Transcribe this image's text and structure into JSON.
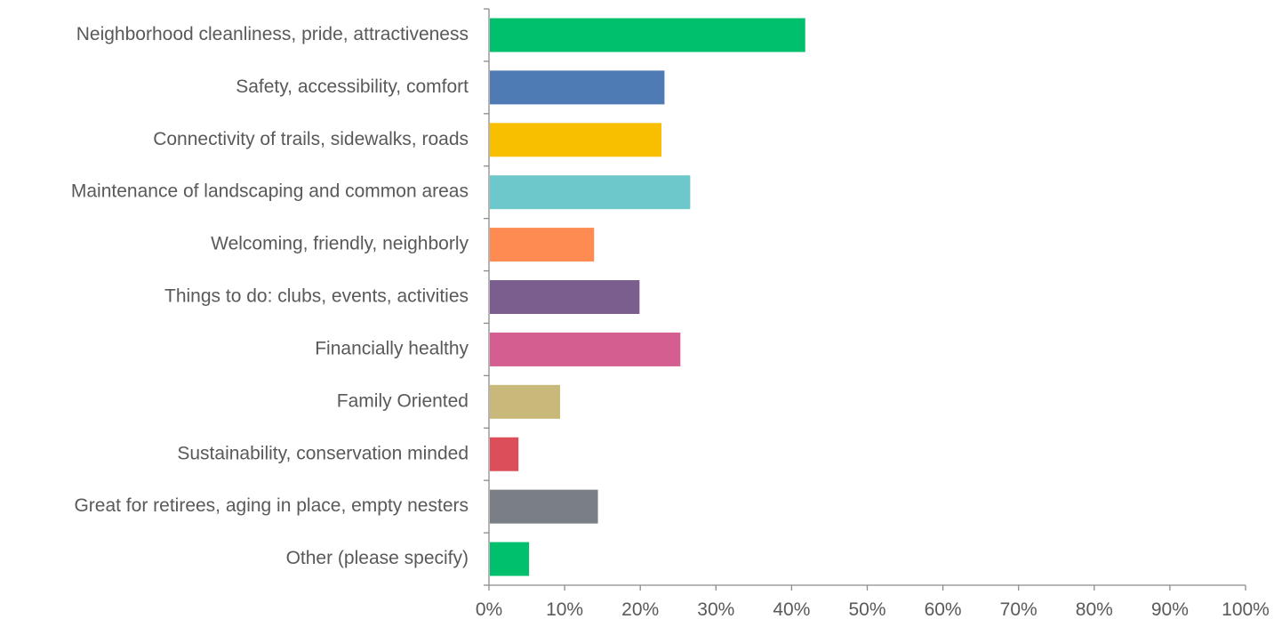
{
  "chart_data": {
    "type": "bar",
    "orientation": "horizontal",
    "title": "",
    "xlabel": "",
    "ylabel": "",
    "xlim": [
      0,
      100
    ],
    "x_ticks": [
      "0%",
      "10%",
      "20%",
      "30%",
      "40%",
      "50%",
      "60%",
      "70%",
      "80%",
      "90%",
      "100%"
    ],
    "grid": false,
    "legend": "none",
    "categories": [
      "Neighborhood cleanliness, pride, attractiveness",
      "Safety, accessibility, comfort",
      "Connectivity of trails, sidewalks, roads",
      "Maintenance of landscaping and common areas",
      "Welcoming, friendly, neighborly",
      "Things to do: clubs, events, activities",
      "Financially healthy",
      "Family Oriented",
      "Sustainability, conservation minded",
      "Great for retirees, aging in place, empty nesters",
      "Other (please specify)"
    ],
    "values": [
      41.8,
      23.2,
      22.8,
      26.6,
      13.9,
      19.9,
      25.3,
      9.4,
      3.9,
      14.4,
      5.3
    ],
    "colors": [
      "#00c06e",
      "#4f7bb5",
      "#f8be00",
      "#6dc8cc",
      "#fe8c52",
      "#7c5e8e",
      "#d35e8f",
      "#c8b87a",
      "#dd4e5b",
      "#7a7f85",
      "#00c06e"
    ]
  }
}
